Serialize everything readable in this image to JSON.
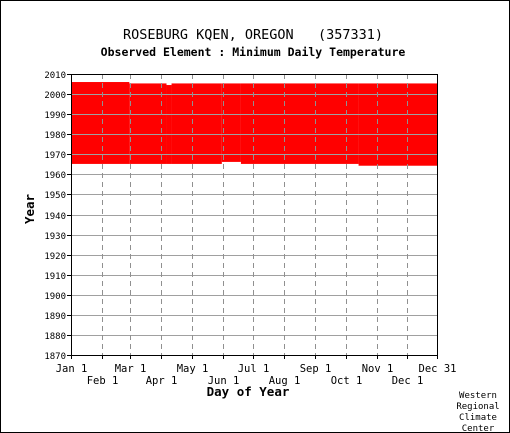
{
  "chart_data": {
    "type": "heatmap",
    "title": "ROSEBURG KQEN, OREGON   (357331)",
    "subtitle": "Observed Element : Minimum Daily Temperature",
    "xlabel": "Day of Year",
    "ylabel": "Year",
    "x_ticks_top": [
      "Jan 1",
      "Mar 1",
      "May 1",
      "Jul 1",
      "Sep 1",
      "Nov 1",
      "Dec 31"
    ],
    "x_ticks_top_days": [
      1,
      60,
      121,
      182,
      244,
      305,
      365
    ],
    "x_ticks_bottom": [
      "Feb 1",
      "Apr 1",
      "Jun 1",
      "Aug 1",
      "Oct 1",
      "Dec 1"
    ],
    "x_ticks_bottom_days": [
      32,
      91,
      152,
      213,
      274,
      335
    ],
    "xlim": [
      1,
      365
    ],
    "ylim": [
      1870,
      2010
    ],
    "y_ticks": [
      1870,
      1880,
      1890,
      1900,
      1910,
      1920,
      1930,
      1940,
      1950,
      1960,
      1970,
      1980,
      1990,
      2000,
      2010
    ],
    "grid": true,
    "fill_color": "#ff0000",
    "segments": [
      {
        "day_start": 1,
        "day_end": 59,
        "year_start": 1965.2,
        "year_end": 2006
      },
      {
        "day_start": 59,
        "day_end": 96,
        "year_start": 1965.2,
        "year_end": 2005.3
      },
      {
        "day_start": 96,
        "day_end": 101,
        "year_start": 1965.2,
        "year_end": 2004.5
      },
      {
        "day_start": 101,
        "day_end": 151,
        "year_start": 1965.2,
        "year_end": 2005.3
      },
      {
        "day_start": 151,
        "day_end": 170,
        "year_start": 1966.2,
        "year_end": 2005.3
      },
      {
        "day_start": 170,
        "day_end": 287,
        "year_start": 1965.2,
        "year_end": 2005.3
      },
      {
        "day_start": 287,
        "day_end": 365,
        "year_start": 1964.3,
        "year_end": 2005.3
      }
    ]
  },
  "footer": {
    "credit_lines": [
      "Western",
      "Regional",
      "Climate",
      "Center"
    ]
  }
}
